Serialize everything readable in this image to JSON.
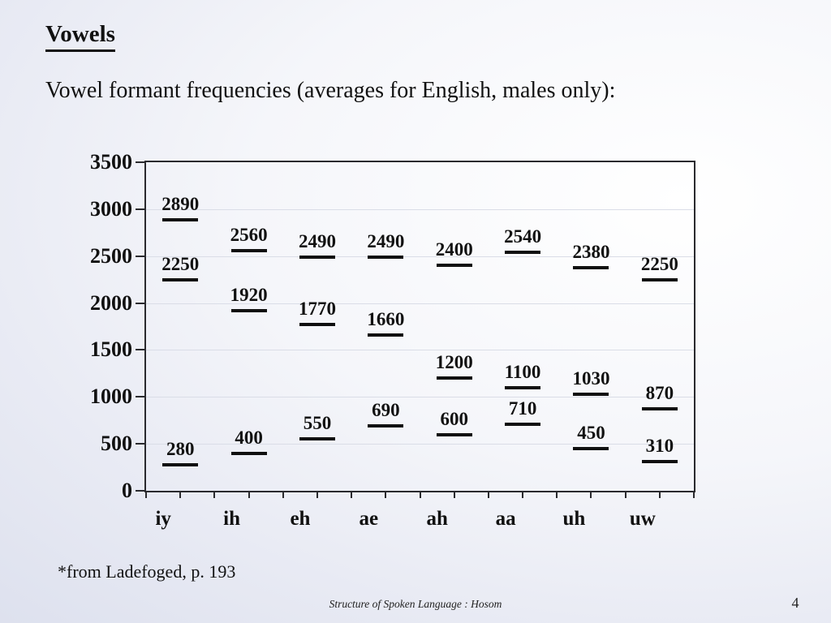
{
  "slide": {
    "title": "Vowels",
    "subtitle": "Vowel formant frequencies (averages for English, males only):",
    "footnote": "*from Ladefoged, p. 193",
    "footer": "Structure of Spoken Language : Hosom",
    "page_number": "4"
  },
  "colors": {
    "text": "#111111",
    "axis": "#2a2a2e",
    "gridline": "#dadde7",
    "marker": "#101010",
    "background_dark": "#d9ddec",
    "background_light": "#ffffff"
  },
  "chart_data": {
    "type": "scatter",
    "marker_style": "horizontal-dash",
    "title": "",
    "xlabel": "",
    "ylabel": "",
    "categories": [
      "iy",
      "ih",
      "eh",
      "ae",
      "ah",
      "aa",
      "uh",
      "uw"
    ],
    "series": [
      {
        "values": [
          2890,
          2560,
          2490,
          2490,
          2400,
          2540,
          2380,
          2250
        ]
      },
      {
        "values": [
          2250,
          1920,
          1770,
          1660,
          1200,
          1100,
          1030,
          870
        ]
      },
      {
        "values": [
          280,
          400,
          550,
          690,
          600,
          710,
          450,
          310
        ]
      }
    ],
    "data_labels": true,
    "ylim": [
      0,
      3500
    ],
    "ytick_interval": 500,
    "yticks": [
      "0",
      "500",
      "1000",
      "1500",
      "2000",
      "2500",
      "3000",
      "3500"
    ],
    "grid": true,
    "legend": false
  }
}
